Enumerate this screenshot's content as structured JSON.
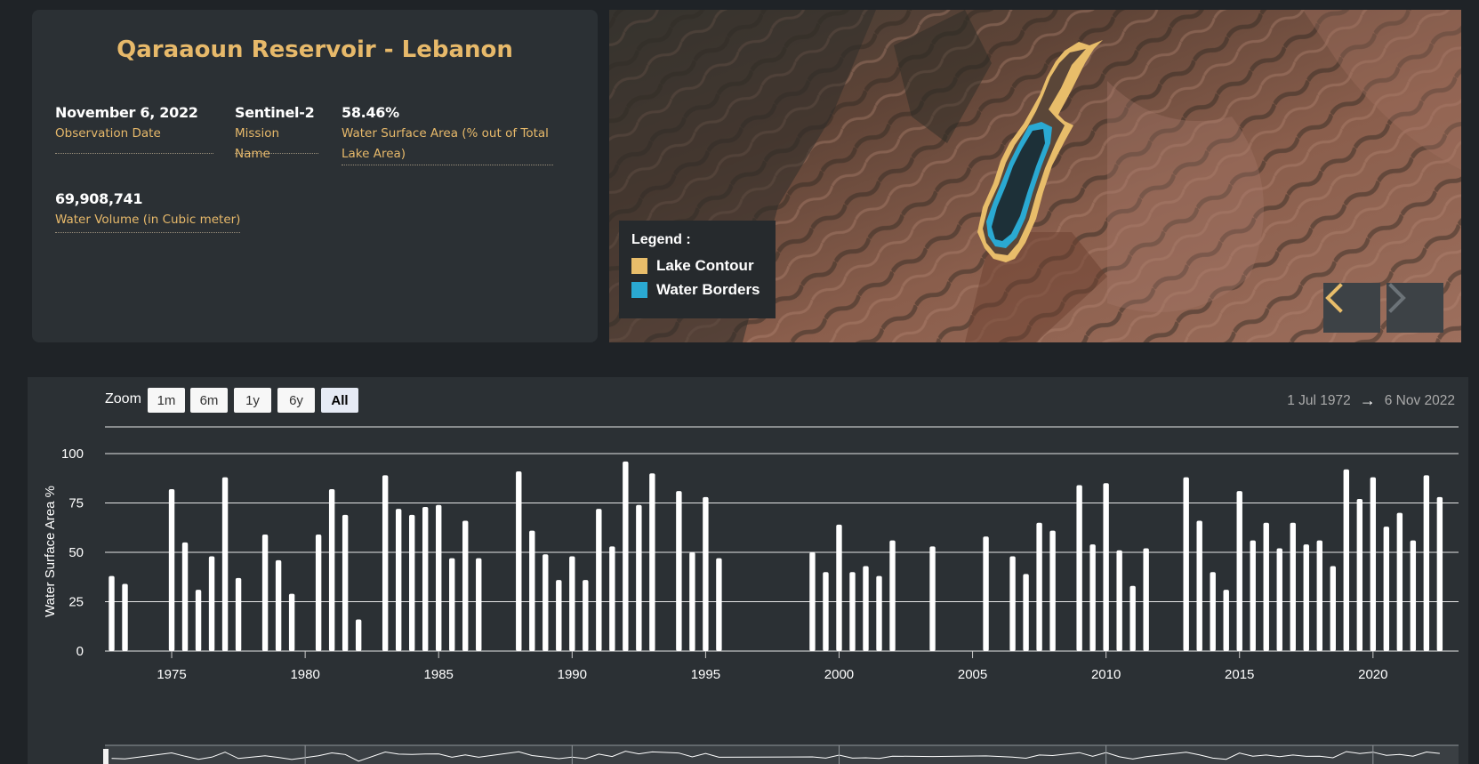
{
  "info": {
    "title": "Qaraaoun Reservoir - Lebanon",
    "observation_date": {
      "value": "November 6, 2022",
      "label": "Observation Date"
    },
    "mission": {
      "value": "Sentinel-2",
      "label": "Mission Name"
    },
    "surface_area": {
      "value": "58.46%",
      "label_line1": "Water Surface Area (% out of Total",
      "label_line2": "Lake Area)"
    },
    "volume": {
      "value": "69,908,741",
      "label": "Water Volume (in Cubic meter)"
    }
  },
  "map": {
    "legend_title": "Legend :",
    "legend_items": [
      {
        "label": "Lake Contour",
        "color": "#e8bd6a"
      },
      {
        "label": "Water Borders",
        "color": "#2aa9d2"
      }
    ],
    "prev_icon": "chevron-left-icon",
    "next_icon": "chevron-right-icon",
    "prev_color": "#e8bd6a",
    "next_color": "#6c7378"
  },
  "chart_controls": {
    "zoom_label": "Zoom",
    "zoom_options": [
      "1m",
      "6m",
      "1y",
      "6y",
      "All"
    ],
    "zoom_selected": "All",
    "range_from": "1 Jul 1972",
    "range_arrow": "→",
    "range_to": "6 Nov 2022"
  },
  "chart_data": {
    "type": "bar",
    "ylabel": "Water Surface Area %",
    "ylim": [
      0,
      100
    ],
    "yticks": [
      0,
      25,
      50,
      75,
      100
    ],
    "xlim": [
      1972.5,
      2022.9
    ],
    "xticks": [
      1975,
      1980,
      1985,
      1990,
      1995,
      2000,
      2005,
      2010,
      2015,
      2020
    ],
    "bar_color": "#ffffff",
    "grid": true,
    "x": [
      1972.75,
      1973.25,
      1975.0,
      1975.5,
      1976.0,
      1976.5,
      1977.0,
      1977.5,
      1978.5,
      1979.0,
      1979.5,
      1980.5,
      1981.0,
      1981.5,
      1982.0,
      1983.0,
      1983.5,
      1984.0,
      1984.5,
      1985.0,
      1985.5,
      1986.0,
      1986.5,
      1988.0,
      1988.5,
      1989.0,
      1989.5,
      1990.0,
      1990.5,
      1991.0,
      1991.5,
      1992.0,
      1992.5,
      1993.0,
      1994.0,
      1994.5,
      1995.0,
      1995.5,
      1999.0,
      1999.5,
      2000.0,
      2000.5,
      2001.0,
      2001.5,
      2002.0,
      2003.5,
      2005.5,
      2006.5,
      2007.0,
      2007.5,
      2008.0,
      2009.0,
      2009.5,
      2010.0,
      2010.5,
      2011.0,
      2011.5,
      2013.0,
      2013.5,
      2014.0,
      2014.5,
      2015.0,
      2015.5,
      2016.0,
      2016.5,
      2017.0,
      2017.5,
      2018.0,
      2018.5,
      2019.0,
      2019.5,
      2020.0,
      2020.5,
      2021.0,
      2021.5,
      2022.0,
      2022.5
    ],
    "values": [
      38,
      34,
      82,
      55,
      31,
      48,
      88,
      37,
      59,
      46,
      29,
      59,
      82,
      69,
      16,
      89,
      72,
      69,
      73,
      74,
      47,
      66,
      47,
      91,
      61,
      49,
      36,
      48,
      36,
      72,
      53,
      96,
      74,
      90,
      81,
      50,
      78,
      47,
      50,
      40,
      64,
      40,
      43,
      38,
      56,
      53,
      58,
      48,
      39,
      65,
      61,
      84,
      54,
      85,
      51,
      33,
      52,
      88,
      66,
      40,
      31,
      81,
      56,
      65,
      52,
      65,
      54,
      56,
      43,
      92,
      77,
      88,
      63,
      70,
      56,
      89,
      78
    ]
  }
}
